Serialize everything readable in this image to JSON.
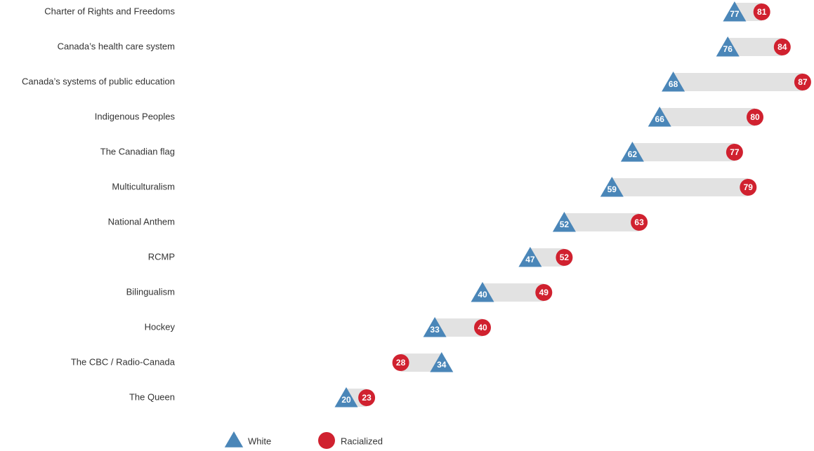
{
  "chart_data": {
    "type": "dumbbell",
    "categories": [
      "Charter of Rights and Freedoms",
      "Canada’s health care system",
      "Canada’s systems of public education",
      "Indigenous Peoples",
      "The Canadian flag",
      "Multiculturalism",
      "National Anthem",
      "RCMP",
      "Bilingualism",
      "Hockey",
      "The CBC / Radio-Canada",
      "The Queen"
    ],
    "series": [
      {
        "name": "White",
        "color": "#4a86b8",
        "marker": "triangle",
        "values": [
          77,
          76,
          68,
          66,
          62,
          59,
          52,
          47,
          40,
          33,
          34,
          20
        ]
      },
      {
        "name": "Racialized",
        "color": "#d0212f",
        "marker": "circle",
        "values": [
          81,
          84,
          87,
          80,
          77,
          79,
          63,
          52,
          49,
          40,
          28,
          23
        ]
      }
    ],
    "range_color": "#e2e2e2",
    "xlim": [
      0,
      90
    ]
  }
}
